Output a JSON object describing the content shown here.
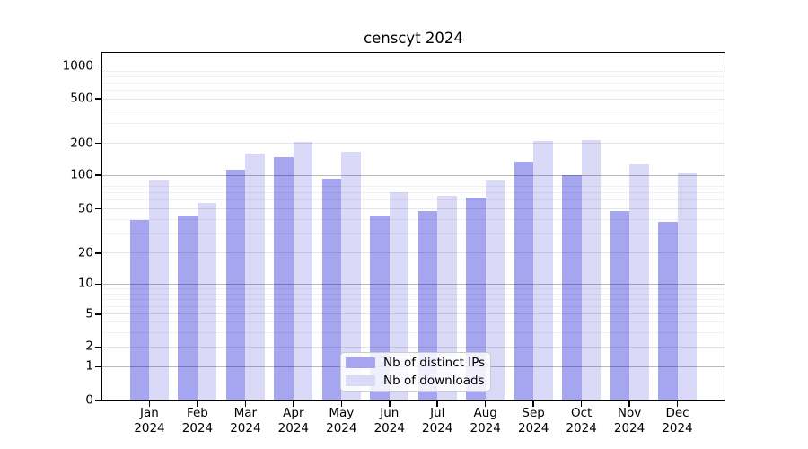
{
  "title": "censcyt 2024",
  "chart_data": {
    "type": "bar",
    "title": "censcyt 2024",
    "scale_note": "log-like y axis with zero baseline",
    "ylim": [
      0,
      1250
    ],
    "grid": true,
    "legend_position": "bottom-center-inside",
    "yticks": [
      0,
      1,
      2,
      5,
      10,
      20,
      50,
      100,
      200,
      500,
      1000
    ],
    "ytick_groups": {
      "major": [
        1,
        10,
        100,
        1000
      ],
      "mid": [
        2,
        5,
        20,
        50,
        200,
        500
      ],
      "minor_unlabeled": [
        3,
        4,
        6,
        7,
        8,
        9,
        30,
        40,
        60,
        70,
        80,
        90,
        300,
        400,
        600,
        700,
        800,
        900
      ]
    },
    "categories": [
      {
        "line1": "Jan",
        "line2": "2024"
      },
      {
        "line1": "Feb",
        "line2": "2024"
      },
      {
        "line1": "Mar",
        "line2": "2024"
      },
      {
        "line1": "Apr",
        "line2": "2024"
      },
      {
        "line1": "May",
        "line2": "2024"
      },
      {
        "line1": "Jun",
        "line2": "2024"
      },
      {
        "line1": "Jul",
        "line2": "2024"
      },
      {
        "line1": "Aug",
        "line2": "2024"
      },
      {
        "line1": "Sep",
        "line2": "2024"
      },
      {
        "line1": "Oct",
        "line2": "2024"
      },
      {
        "line1": "Nov",
        "line2": "2024"
      },
      {
        "line1": "Dec",
        "line2": "2024"
      }
    ],
    "series": [
      {
        "name": "Nb of distinct IPs",
        "color": "#a5a5f0",
        "values": [
          40,
          44,
          113,
          148,
          93,
          44,
          48,
          63,
          135,
          100,
          48,
          38
        ]
      },
      {
        "name": "Nb of downloads",
        "color": "#dadaf8",
        "values": [
          90,
          57,
          160,
          205,
          165,
          71,
          66,
          90,
          210,
          213,
          128,
          104
        ]
      }
    ]
  }
}
